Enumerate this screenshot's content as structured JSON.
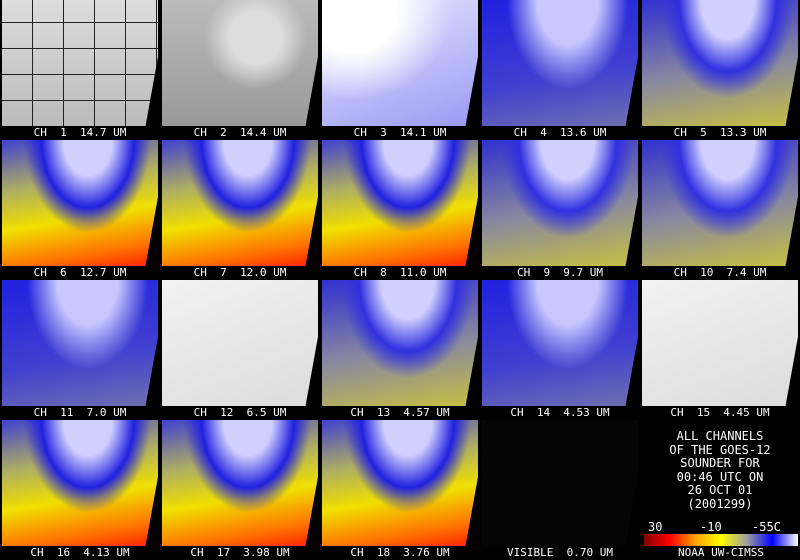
{
  "panels": [
    {
      "label": "CH  1  14.7 UM"
    },
    {
      "label": "CH  2  14.4 UM"
    },
    {
      "label": "CH  3  14.1 UM"
    },
    {
      "label": "CH  4  13.6 UM"
    },
    {
      "label": "CH  5  13.3 UM"
    },
    {
      "label": "CH  6  12.7 UM"
    },
    {
      "label": "CH  7  12.0 UM"
    },
    {
      "label": "CH  8  11.0 UM"
    },
    {
      "label": "CH  9  9.7 UM"
    },
    {
      "label": "CH  10  7.4 UM"
    },
    {
      "label": "CH  11  7.0 UM"
    },
    {
      "label": "CH  12  6.5 UM"
    },
    {
      "label": "CH  13  4.57 UM"
    },
    {
      "label": "CH  14  4.53 UM"
    },
    {
      "label": "CH  15  4.45 UM"
    },
    {
      "label": "CH  16  4.13 UM"
    },
    {
      "label": "CH  17  3.98 UM"
    },
    {
      "label": "CH  18  3.76 UM"
    },
    {
      "label": "VISIBLE  0.70 UM"
    }
  ],
  "info": {
    "lines": [
      "ALL CHANNELS",
      "OF THE GOES-12",
      "SOUNDER FOR",
      "00:46 UTC ON",
      "26 OCT 01",
      "(2001299)"
    ]
  },
  "colorbar": {
    "labels": [
      "30",
      "-10",
      "-55C"
    ],
    "credit": "NOAA UW-CIMSS"
  }
}
